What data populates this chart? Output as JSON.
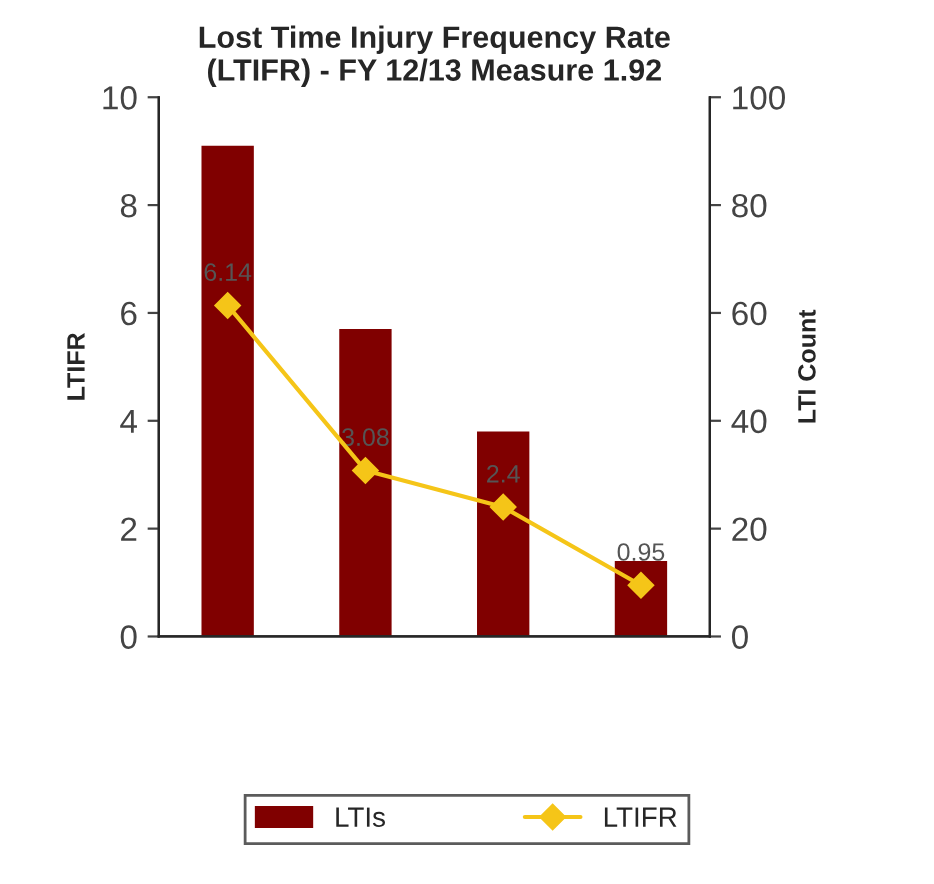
{
  "chart_data": {
    "type": "bar",
    "title": "Lost Time Injury Frequency Rate\n(LTIFR) - FY 12/13 Measure 1.92",
    "ylabel": "LTIFR",
    "y2label": "LTI Count",
    "categories": [
      null,
      null,
      null,
      null
    ],
    "series": [
      {
        "name": "LTIs",
        "axis": "y2",
        "color": "#800000",
        "values": [
          91,
          57,
          38,
          14
        ]
      },
      {
        "name": "LTIFR",
        "type": "line",
        "axis": "y",
        "color": "#f5c518",
        "values": [
          6.14,
          3.08,
          2.4,
          0.95
        ],
        "value_labels": [
          "6.14",
          "3.08",
          "2.4",
          "0.95"
        ],
        "marker": "diamond"
      }
    ],
    "ylim": [
      0,
      10
    ],
    "yticks": [
      0,
      2,
      4,
      6,
      8,
      10
    ],
    "y2lim": [
      0,
      100
    ],
    "y2ticks": [
      0,
      20,
      40,
      60,
      80,
      100
    ],
    "grid": false,
    "legend": "bottom"
  }
}
